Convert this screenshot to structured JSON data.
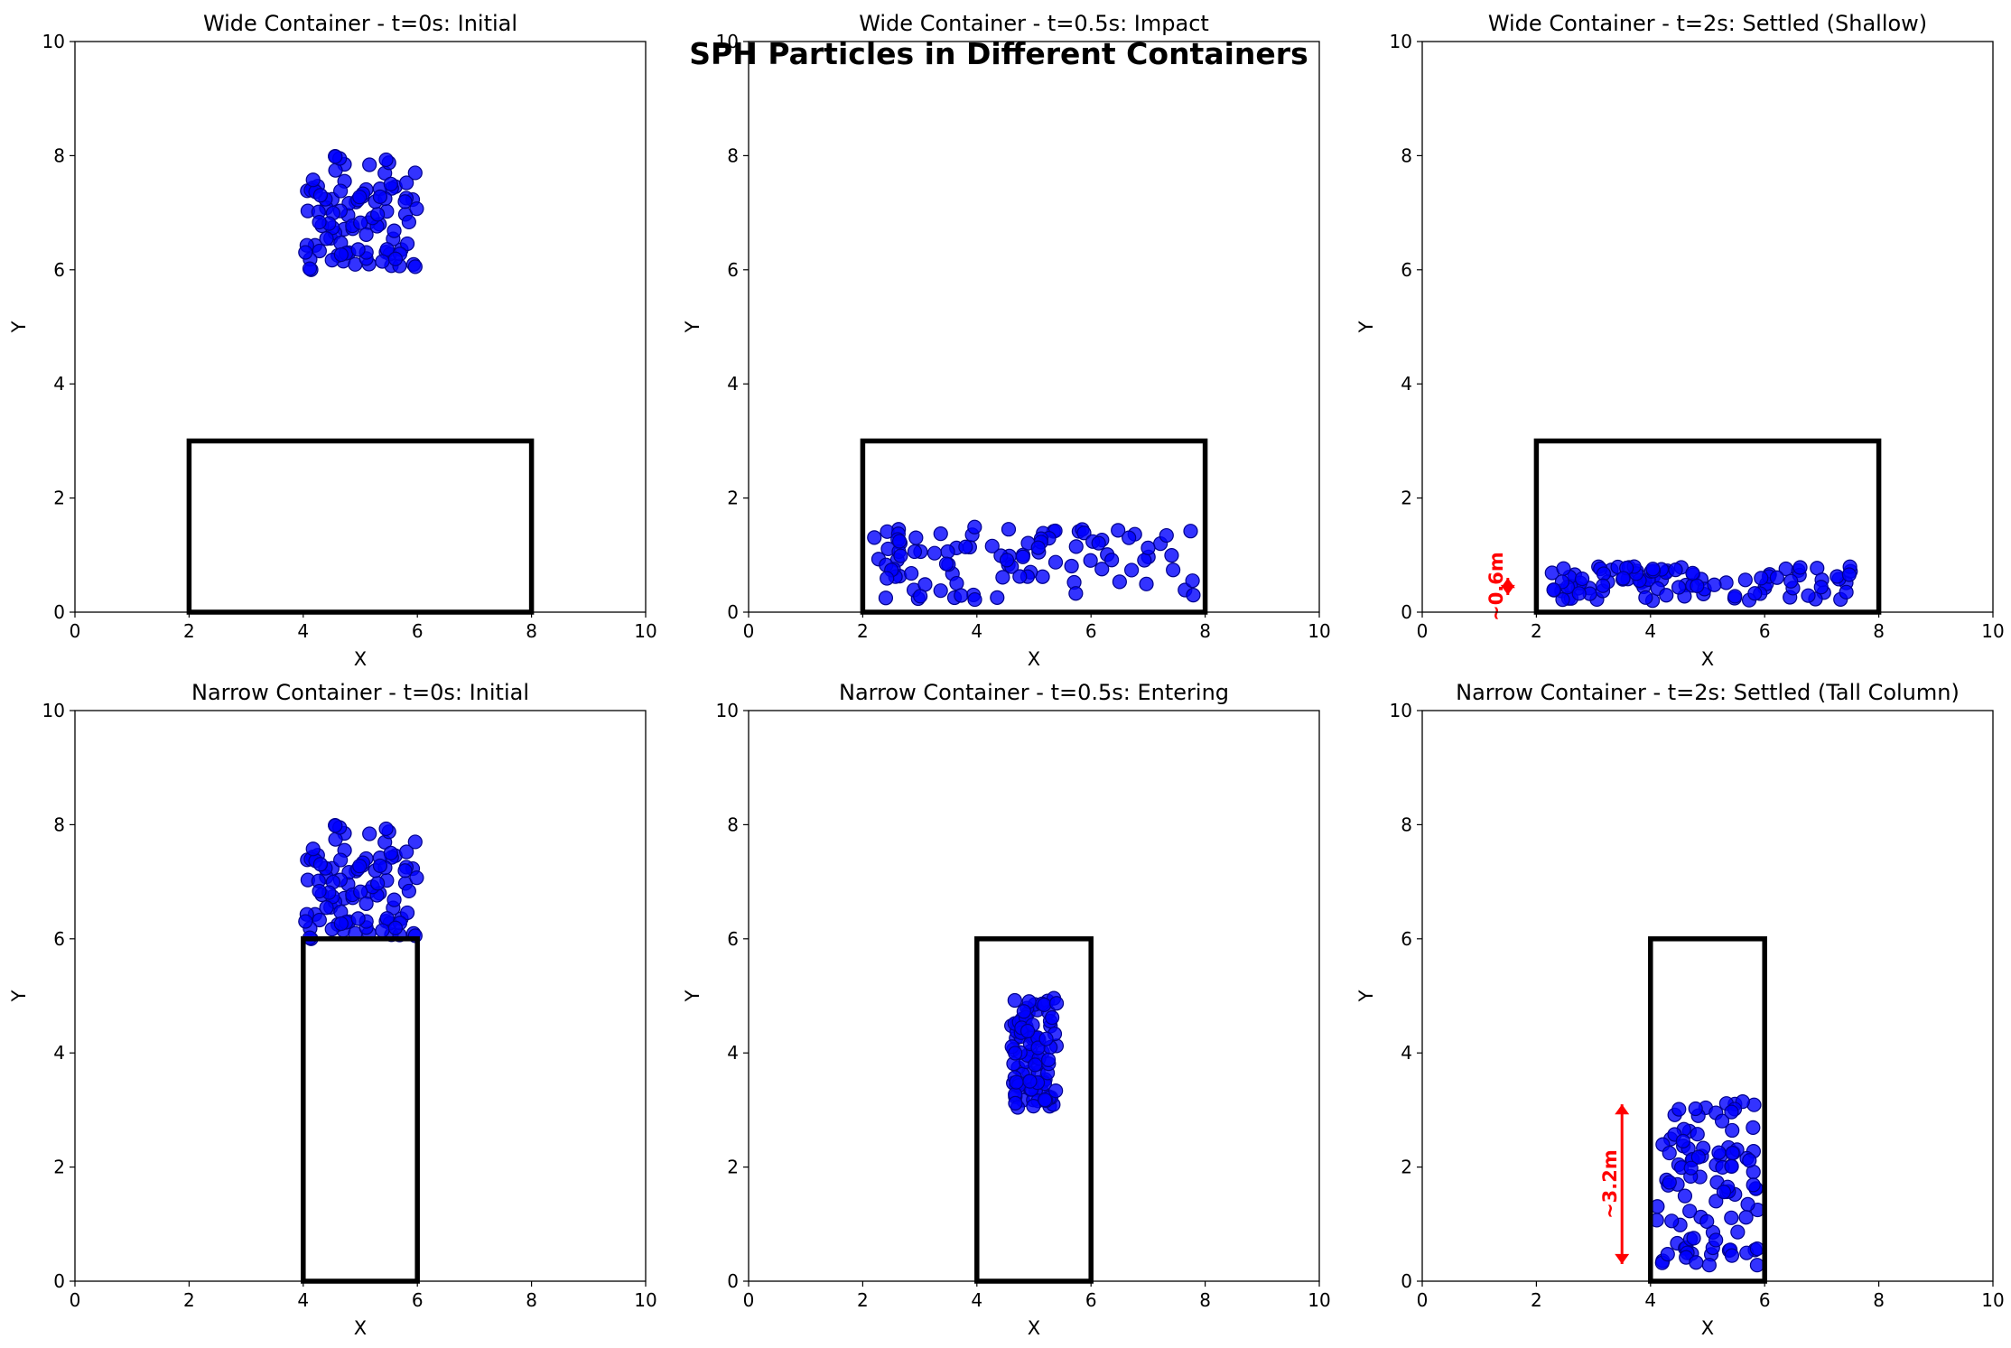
{
  "figure": {
    "suptitle": "SPH Particles in Different Containers",
    "colors": {
      "particle_fill": "#0000ff",
      "particle_edge": "#00008b",
      "container": "#000000",
      "annotation": "#ff0000"
    }
  },
  "chart_data": [
    {
      "type": "scatter",
      "title": "Wide Container - t=0s: Initial",
      "xlabel": "X",
      "ylabel": "Y",
      "xlim": [
        0,
        10
      ],
      "ylim": [
        0,
        10
      ],
      "xticks": [
        0,
        2,
        4,
        6,
        8,
        10
      ],
      "yticks": [
        0,
        2,
        4,
        6,
        8,
        10
      ],
      "container": {
        "x0": 2,
        "x1": 8,
        "y0": 0,
        "y1": 3
      },
      "particles": {
        "x_range": [
          4,
          6
        ],
        "y_range": [
          6,
          8
        ],
        "count": 100,
        "seed": 11
      },
      "annotation": null
    },
    {
      "type": "scatter",
      "title": "Wide Container - t=0.5s: Impact",
      "xlabel": "X",
      "ylabel": "Y",
      "xlim": [
        0,
        10
      ],
      "ylim": [
        0,
        10
      ],
      "xticks": [
        0,
        2,
        4,
        6,
        8,
        10
      ],
      "yticks": [
        0,
        2,
        4,
        6,
        8,
        10
      ],
      "container": {
        "x0": 2,
        "x1": 8,
        "y0": 0,
        "y1": 3
      },
      "particles": {
        "x_range": [
          2.2,
          7.8
        ],
        "y_range": [
          0.2,
          1.5
        ],
        "count": 100,
        "seed": 23
      },
      "annotation": null
    },
    {
      "type": "scatter",
      "title": "Wide Container - t=2s: Settled (Shallow)",
      "xlabel": "X",
      "ylabel": "Y",
      "xlim": [
        0,
        10
      ],
      "ylim": [
        0,
        10
      ],
      "xticks": [
        0,
        2,
        4,
        6,
        8,
        10
      ],
      "yticks": [
        0,
        2,
        4,
        6,
        8,
        10
      ],
      "container": {
        "x0": 2,
        "x1": 8,
        "y0": 0,
        "y1": 3
      },
      "particles": {
        "x_range": [
          2.2,
          7.8
        ],
        "y_range": [
          0.2,
          0.8
        ],
        "count": 100,
        "seed": 37
      },
      "annotation": {
        "text": "~0.6m",
        "x": 1.5,
        "y_from": 0.3,
        "y_to": 0.6
      }
    },
    {
      "type": "scatter",
      "title": "Narrow Container - t=0s: Initial",
      "xlabel": "X",
      "ylabel": "Y",
      "xlim": [
        0,
        10
      ],
      "ylim": [
        0,
        10
      ],
      "xticks": [
        0,
        2,
        4,
        6,
        8,
        10
      ],
      "yticks": [
        0,
        2,
        4,
        6,
        8,
        10
      ],
      "container": {
        "x0": 4,
        "x1": 6,
        "y0": 0,
        "y1": 6
      },
      "particles": {
        "x_range": [
          4,
          6
        ],
        "y_range": [
          6,
          8
        ],
        "count": 100,
        "seed": 11
      },
      "annotation": null
    },
    {
      "type": "scatter",
      "title": "Narrow Container - t=0.5s: Entering",
      "xlabel": "X",
      "ylabel": "Y",
      "xlim": [
        0,
        10
      ],
      "ylim": [
        0,
        10
      ],
      "xticks": [
        0,
        2,
        4,
        6,
        8,
        10
      ],
      "yticks": [
        0,
        2,
        4,
        6,
        8,
        10
      ],
      "container": {
        "x0": 4,
        "x1": 6,
        "y0": 0,
        "y1": 6
      },
      "particles": {
        "x_range": [
          4.6,
          5.4
        ],
        "y_range": [
          3,
          5
        ],
        "count": 100,
        "seed": 53
      },
      "annotation": null
    },
    {
      "type": "scatter",
      "title": "Narrow Container - t=2s: Settled (Tall Column)",
      "xlabel": "X",
      "ylabel": "Y",
      "xlim": [
        0,
        10
      ],
      "ylim": [
        0,
        10
      ],
      "xticks": [
        0,
        2,
        4,
        6,
        8,
        10
      ],
      "yticks": [
        0,
        2,
        4,
        6,
        8,
        10
      ],
      "container": {
        "x0": 4,
        "x1": 6,
        "y0": 0,
        "y1": 6
      },
      "particles": {
        "x_range": [
          4.1,
          5.9
        ],
        "y_range": [
          0.25,
          3.2
        ],
        "count": 100,
        "seed": 71
      },
      "annotation": {
        "text": "~3.2m",
        "x": 3.5,
        "y_from": 0.3,
        "y_to": 3.1
      }
    }
  ]
}
